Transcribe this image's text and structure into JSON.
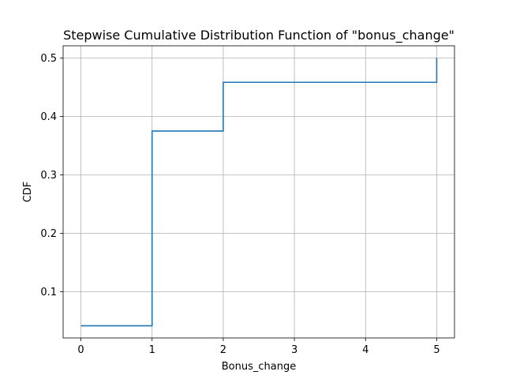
{
  "chart_data": {
    "type": "line",
    "step": true,
    "title": "Stepwise Cumulative Distribution Function of \"bonus_change\"",
    "xlabel": "Bonus_change",
    "ylabel": "CDF",
    "xlim": [
      -0.25,
      5.25
    ],
    "ylim": [
      0.0208,
      0.5208
    ],
    "xticks": [
      0,
      1,
      2,
      3,
      4,
      5
    ],
    "yticks": [
      0.1,
      0.2,
      0.3,
      0.4,
      0.5
    ],
    "xtick_labels": [
      "0",
      "1",
      "2",
      "3",
      "4",
      "5"
    ],
    "ytick_labels": [
      "0.1",
      "0.2",
      "0.3",
      "0.4",
      "0.5"
    ],
    "grid": true,
    "series": [
      {
        "x": [
          0,
          1,
          1,
          2,
          2,
          5,
          5
        ],
        "y": [
          0.0417,
          0.0417,
          0.375,
          0.375,
          0.4583,
          0.4583,
          0.5
        ],
        "color": "#1f77b4"
      }
    ]
  }
}
